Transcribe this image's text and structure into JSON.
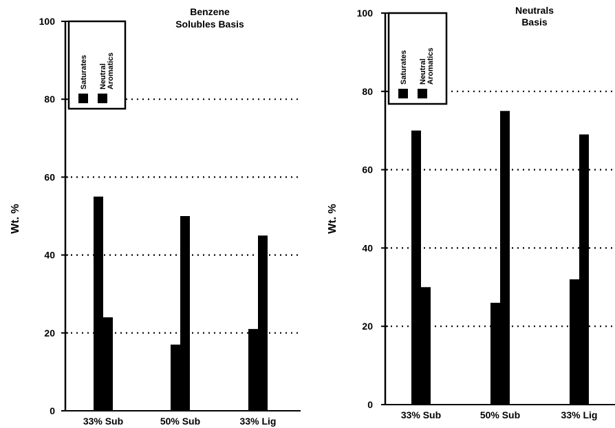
{
  "chart_data": [
    {
      "type": "bar",
      "title": "Benzene Solubles Basis",
      "title_lines": [
        "Benzene",
        "Solubles Basis"
      ],
      "ylabel": "Wt. %",
      "xlabel": "",
      "ylim": [
        0,
        100
      ],
      "yticks": [
        "0",
        "20",
        "40",
        "60",
        "80",
        "100"
      ],
      "grid": "dotted horizontal at 20, 40, 60, 80",
      "legend_position": "top-left",
      "categories": [
        "33% Sub",
        "50% Sub",
        "33% Lig"
      ],
      "series": [
        {
          "name": "Saturates",
          "values": [
            55,
            17,
            21
          ]
        },
        {
          "name": "Neutral Aromatics",
          "values": [
            24,
            50,
            45
          ]
        }
      ],
      "bar_color": "#000000"
    },
    {
      "type": "bar",
      "title": "Neutrals Basis",
      "title_lines": [
        "Neutrals",
        "Basis"
      ],
      "ylabel": "Wt. %",
      "xlabel": "",
      "ylim": [
        0,
        100
      ],
      "yticks": [
        "0",
        "20",
        "40",
        "60",
        "80",
        "100"
      ],
      "grid": "dotted horizontal at 20, 40, 60, 80",
      "legend_position": "top-left",
      "categories": [
        "33% Sub",
        "50% Sub",
        "33% Lig"
      ],
      "series": [
        {
          "name": "Saturates",
          "values": [
            70,
            26,
            32
          ]
        },
        {
          "name": "Neutral Aromatics",
          "values": [
            30,
            75,
            69
          ]
        }
      ],
      "bar_color": "#000000"
    }
  ]
}
